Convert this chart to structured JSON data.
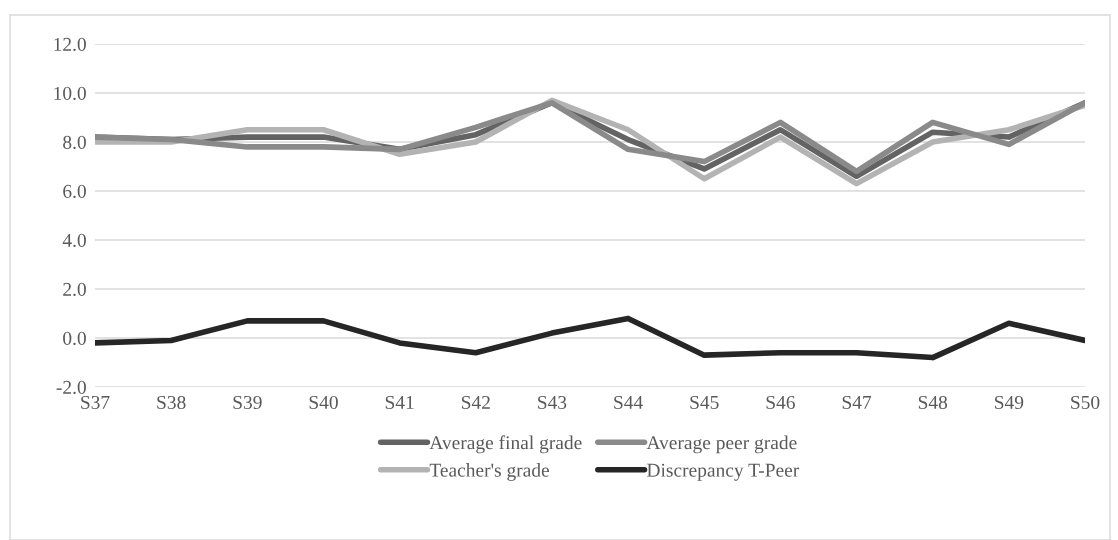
{
  "chart_data": {
    "type": "line",
    "categories": [
      "S37",
      "S38",
      "S39",
      "S40",
      "S41",
      "S42",
      "S43",
      "S44",
      "S45",
      "S46",
      "S47",
      "S48",
      "S49",
      "S50"
    ],
    "series": [
      {
        "name": "Average final grade",
        "color": "#636363",
        "values": [
          8.2,
          8.1,
          8.2,
          8.2,
          7.7,
          8.3,
          9.6,
          8.1,
          6.9,
          8.5,
          6.6,
          8.4,
          8.2,
          9.6
        ]
      },
      {
        "name": "Teacher's grade",
        "color": "#b3b3b3",
        "values": [
          8.0,
          8.0,
          8.5,
          8.5,
          7.5,
          8.0,
          9.7,
          8.5,
          6.5,
          8.2,
          6.3,
          8.0,
          8.5,
          9.5
        ]
      },
      {
        "name": "Average peer grade",
        "color": "#8a8a8a",
        "values": [
          8.2,
          8.1,
          7.8,
          7.8,
          7.7,
          8.6,
          9.6,
          7.7,
          7.2,
          8.8,
          6.8,
          8.8,
          7.9,
          9.6
        ]
      },
      {
        "name": "Discrepancy T-Peer",
        "color": "#262626",
        "values": [
          -0.2,
          -0.1,
          0.7,
          0.7,
          -0.2,
          -0.6,
          0.2,
          0.8,
          -0.7,
          -0.6,
          -0.6,
          -0.8,
          0.6,
          -0.1
        ]
      }
    ],
    "ylim": [
      -2,
      12
    ],
    "yticks": [
      {
        "value": -2,
        "label": "-2.0"
      },
      {
        "value": 0,
        "label": "0.0"
      },
      {
        "value": 2,
        "label": "2.0"
      },
      {
        "value": 4,
        "label": "4.0"
      },
      {
        "value": 6,
        "label": "6.0"
      },
      {
        "value": 8,
        "label": "8.0"
      },
      {
        "value": 10,
        "label": "10.0"
      },
      {
        "value": 12,
        "label": "12.0"
      }
    ],
    "grid": "y",
    "legend": "bottom",
    "marker": "none",
    "line_style": "solid"
  }
}
